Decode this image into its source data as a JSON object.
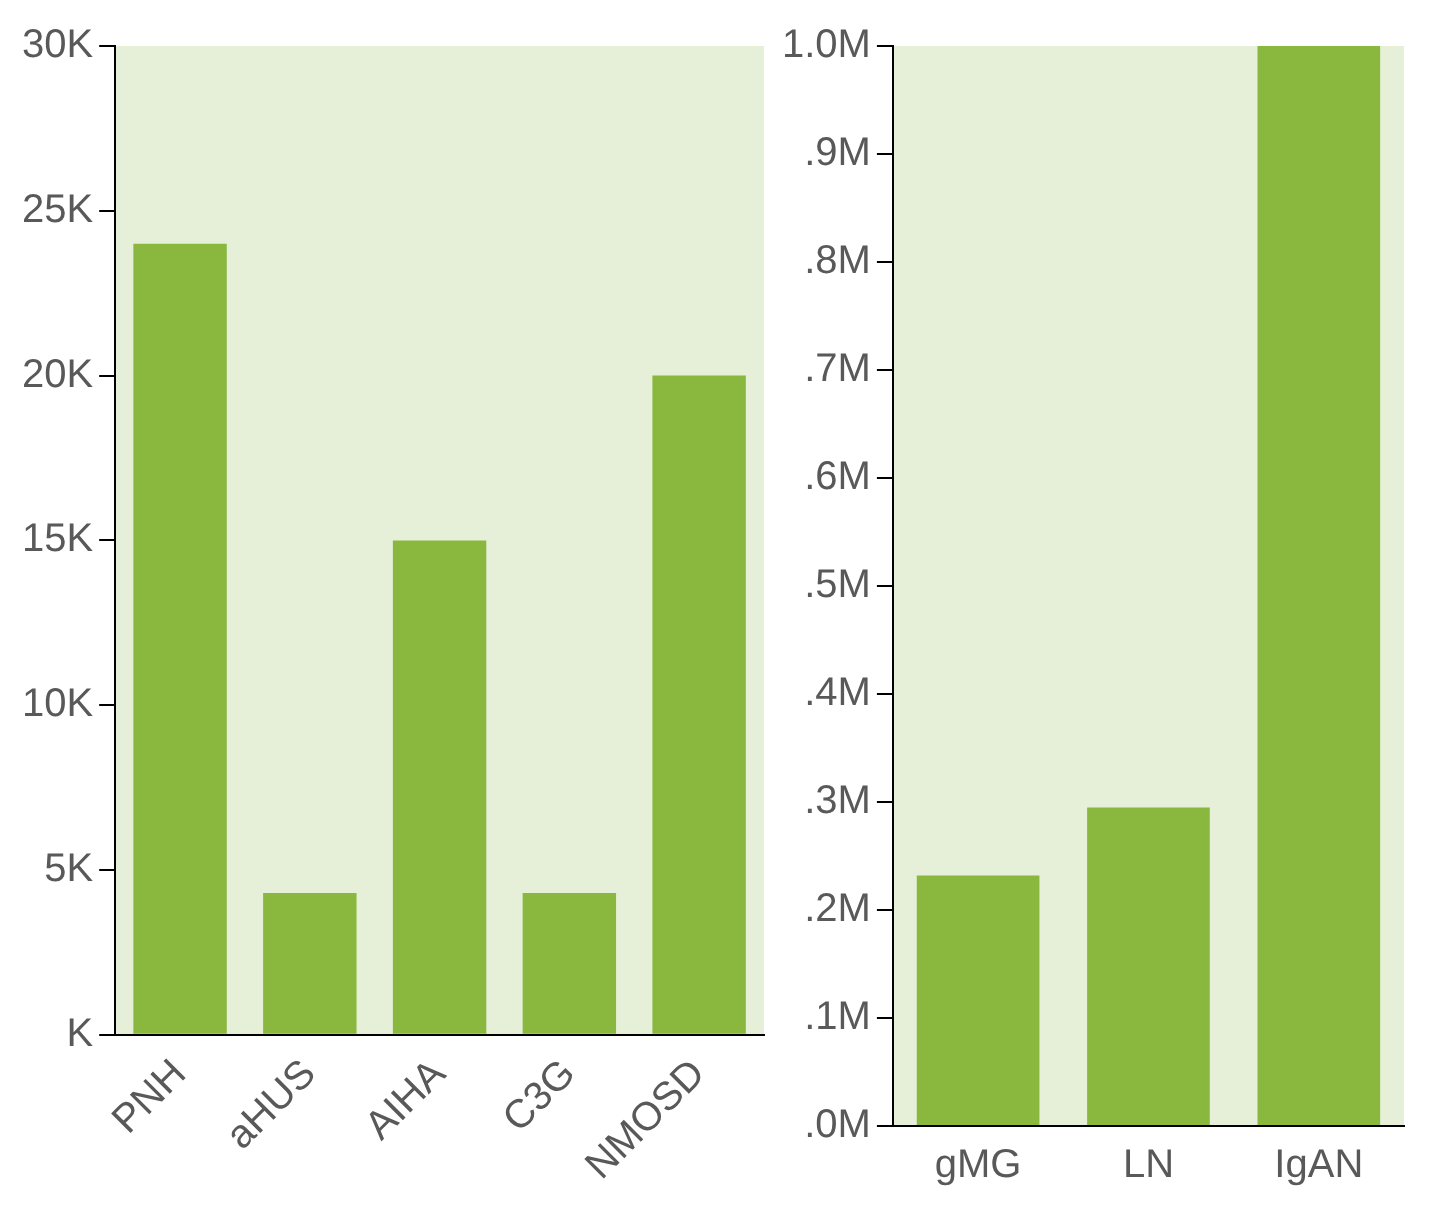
{
  "chart_data": [
    {
      "type": "bar",
      "categories": [
        "PNH",
        "aHUS",
        "AIHA",
        "C3G",
        "NMOSD"
      ],
      "values": [
        24000,
        4300,
        15000,
        4300,
        20000
      ],
      "color": "#8ab83f",
      "ylim": [
        0,
        30000
      ],
      "yticks": [
        {
          "value": 0,
          "label": "K"
        },
        {
          "value": 5000,
          "label": "5K"
        },
        {
          "value": 10000,
          "label": "10K"
        },
        {
          "value": 15000,
          "label": "15K"
        },
        {
          "value": 20000,
          "label": "20K"
        },
        {
          "value": 25000,
          "label": "25K"
        },
        {
          "value": 30000,
          "label": "30K"
        }
      ]
    },
    {
      "type": "bar",
      "categories": [
        "gMG",
        "LN",
        "IgAN"
      ],
      "values": [
        232000,
        295000,
        1000000
      ],
      "color": "#8ab83f",
      "ylim": [
        0,
        1000000
      ],
      "yticks": [
        {
          "value": 0,
          "label": ".0M"
        },
        {
          "value": 100000,
          "label": ".1M"
        },
        {
          "value": 200000,
          "label": ".2M"
        },
        {
          "value": 300000,
          "label": ".3M"
        },
        {
          "value": 400000,
          "label": ".4M"
        },
        {
          "value": 500000,
          "label": ".5M"
        },
        {
          "value": 600000,
          "label": ".6M"
        },
        {
          "value": 700000,
          "label": ".7M"
        },
        {
          "value": 800000,
          "label": ".8M"
        },
        {
          "value": 900000,
          "label": ".9M"
        },
        {
          "value": 1000000,
          "label": "1.0M"
        }
      ]
    }
  ]
}
